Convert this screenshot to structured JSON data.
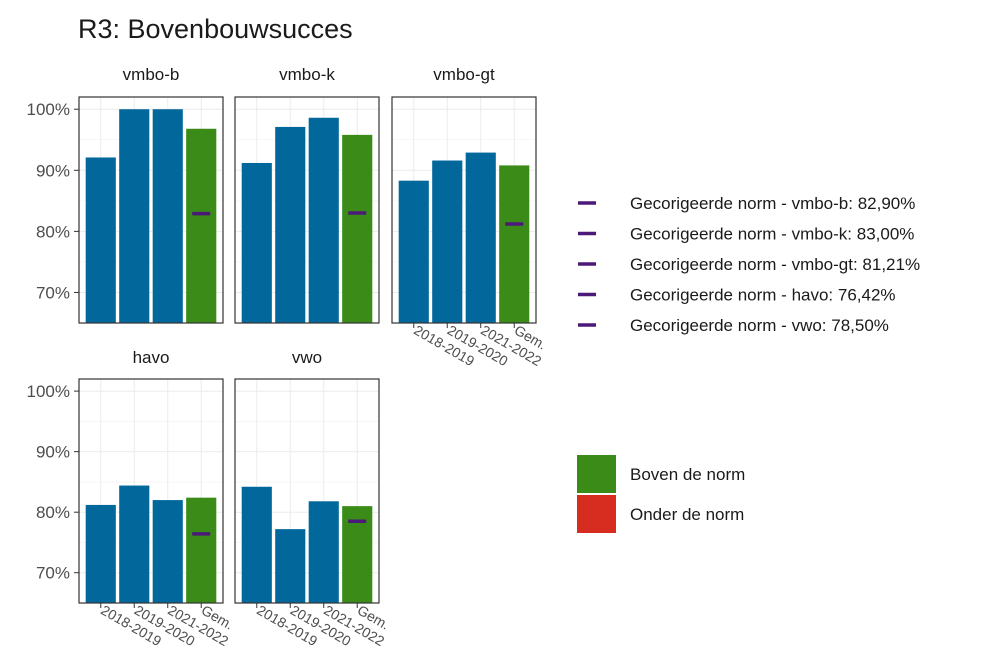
{
  "chart_data": {
    "type": "bar",
    "title": "R3: Bovenbouwsucces",
    "xlabel": "",
    "ylabel": "",
    "categories": [
      "2018-2019",
      "2019-2020",
      "2021-2022",
      "Gem."
    ],
    "ylim": [
      65,
      102
    ],
    "yticks": [
      "70%",
      "80%",
      "90%",
      "100%"
    ],
    "ytick_values": [
      70,
      80,
      90,
      100
    ],
    "grid": true,
    "colors": {
      "year_bar": "#02689b",
      "above_norm": "#3a8b18",
      "below_norm": "#d62d20",
      "norm_marker": "#4b1a78"
    },
    "panels": [
      {
        "name": "vmbo-b",
        "values": [
          92.1,
          100.0,
          100.0,
          96.8
        ],
        "norm": 82.9
      },
      {
        "name": "vmbo-k",
        "values": [
          91.2,
          97.1,
          98.6,
          95.8
        ],
        "norm": 83.0
      },
      {
        "name": "vmbo-gt",
        "values": [
          88.3,
          91.6,
          92.9,
          90.8
        ],
        "norm": 81.21
      },
      {
        "name": "havo",
        "values": [
          81.2,
          84.4,
          82.0,
          82.4
        ],
        "norm": 76.42
      },
      {
        "name": "vwo",
        "values": [
          84.2,
          77.2,
          81.8,
          81.0
        ],
        "norm": 78.5
      }
    ],
    "legend_norm": [
      "Gecorigeerde norm - vmbo-b: 82,90%",
      "Gecorigeerde norm - vmbo-k: 83,00%",
      "Gecorigeerde norm - vmbo-gt: 81,21%",
      "Gecorigeerde norm - havo: 76,42%",
      "Gecorigeerde norm - vwo: 78,50%"
    ],
    "legend_fill": [
      {
        "label": "Boven de norm",
        "color": "#3a8b18"
      },
      {
        "label": "Onder de norm",
        "color": "#d62d20"
      }
    ],
    "legend_position": "right"
  }
}
